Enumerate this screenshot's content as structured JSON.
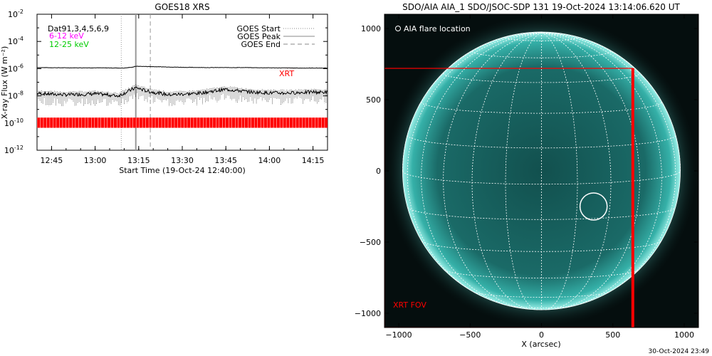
{
  "chart_data": [
    {
      "type": "line",
      "title": "GOES18 XRS",
      "xlabel": "Start Time (19-Oct-24 12:40:00)",
      "ylabel": "X-ray Flux (W m⁻²)",
      "yscale": "log",
      "ylim": [
        1e-12,
        0.01
      ],
      "xlim_minutes_from_start": [
        0,
        100
      ],
      "x_tick_labels": [
        "12:45",
        "13:00",
        "13:15",
        "13:30",
        "13:45",
        "14:00",
        "14:15"
      ],
      "y_tick_labels": [
        {
          "base": "10",
          "exp": "-2"
        },
        {
          "base": "10",
          "exp": "-4"
        },
        {
          "base": "10",
          "exp": "-6"
        },
        {
          "base": "10",
          "exp": "-8"
        },
        {
          "base": "10",
          "exp": "-10"
        },
        {
          "base": "10",
          "exp": "-12"
        }
      ],
      "annotations": {
        "channels": "Dat91,3,4,5,6,9",
        "band1": "6-12 keV",
        "band2": "12-25 keV",
        "xrt_label": "XRT"
      },
      "legend": {
        "placement": "top-right",
        "entries": [
          "GOES Start",
          "GOES Peak",
          "GOES End"
        ]
      },
      "event_times": {
        "start": "13:09",
        "peak": "13:14",
        "end": "13:19"
      },
      "series": [
        {
          "name": "long",
          "x": [
            "12:40",
            "12:50",
            "13:00",
            "13:10",
            "13:13",
            "13:14",
            "13:20",
            "13:30",
            "13:40",
            "13:50",
            "14:00",
            "14:10",
            "14:20"
          ],
          "y": [
            1.2e-06,
            1.15e-06,
            1.15e-06,
            1.1e-06,
            1.3e-06,
            1.5e-06,
            1.4e-06,
            1.25e-06,
            1.2e-06,
            1.2e-06,
            1.15e-06,
            1.1e-06,
            1.1e-06
          ]
        },
        {
          "name": "short",
          "x": [
            "12:40",
            "12:50",
            "13:00",
            "13:08",
            "13:12",
            "13:14",
            "13:18",
            "13:25",
            "13:35",
            "13:45",
            "13:55",
            "14:05",
            "14:15",
            "14:20"
          ],
          "y": [
            1.5e-08,
            1.2e-08,
            1.4e-08,
            1e-08,
            2.5e-08,
            4e-08,
            2.2e-08,
            1.2e-08,
            1.5e-08,
            3e-08,
            1.8e-08,
            1.6e-08,
            1.9e-08,
            1.8e-08
          ]
        }
      ],
      "colors": {
        "band1": "#ff00ff",
        "band2": "#00cc00",
        "xrt": "#ff0000"
      }
    },
    {
      "type": "image",
      "title": "SDO/AIA AIA_1 SDO/JSOC-SDP 131 19-Oct-2024 13:14:06.620 UT",
      "xlabel": "X (arcsec)",
      "x_ticks": [
        -1000,
        -500,
        0,
        500,
        1000
      ],
      "y_ticks": [
        1000,
        500,
        0,
        -500,
        -1000
      ],
      "xlim": [
        -1100,
        1100
      ],
      "ylim": [
        -1100,
        1100
      ],
      "solar_radius_arcsec": 973,
      "flare_location": {
        "x": 365,
        "y": -250
      },
      "flare_marker_label": "AIA flare location",
      "xrt_fov": {
        "x": [
          -1100,
          640
        ],
        "y": [
          -1100,
          720
        ],
        "label": "XRT FOV"
      },
      "colors": {
        "disk": "#1f8f8a",
        "grid": "#ffffff",
        "fov": "#ff0000"
      }
    }
  ],
  "footer": {
    "timestamp": "30-Oct-2024 23:49"
  }
}
